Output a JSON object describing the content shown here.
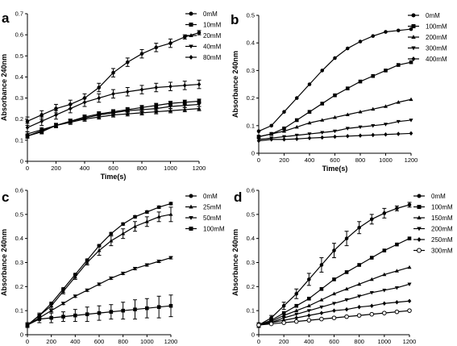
{
  "chart_data": [
    {
      "panel": "a",
      "type": "line",
      "xlabel": "Time(s)",
      "ylabel": "Absorbance 240nm",
      "xlim": [
        0,
        1200
      ],
      "ylim": [
        0,
        0.7
      ],
      "xticks": [
        0,
        200,
        400,
        600,
        800,
        1000,
        1200
      ],
      "yticks": [
        0.0,
        0.1,
        0.2,
        0.3,
        0.4,
        0.5,
        0.6,
        0.7
      ],
      "x": [
        0,
        100,
        200,
        300,
        400,
        500,
        600,
        700,
        800,
        900,
        1000,
        1100,
        1200
      ],
      "legend_position": "top-right",
      "series": [
        {
          "name": "0mM",
          "marker": "circle",
          "values": [
            0.19,
            0.22,
            0.25,
            0.27,
            0.3,
            0.35,
            0.42,
            0.47,
            0.51,
            0.54,
            0.56,
            0.59,
            0.61
          ],
          "errors": [
            0.02,
            0.02,
            0.02,
            0.02,
            0.02,
            0.02,
            0.02,
            0.02,
            0.02,
            0.02,
            0.02,
            0.01,
            0.01
          ]
        },
        {
          "name": "10mM",
          "marker": "square",
          "values": [
            0.12,
            0.14,
            0.17,
            0.19,
            0.21,
            0.225,
            0.235,
            0.245,
            0.255,
            0.265,
            0.275,
            0.28,
            0.285
          ],
          "errors": [
            0.01,
            0.01,
            0.01,
            0.01,
            0.01,
            0.01,
            0.01,
            0.01,
            0.01,
            0.01,
            0.01,
            0.01,
            0.01
          ]
        },
        {
          "name": "20mM",
          "marker": "triangle-up",
          "values": [
            0.13,
            0.15,
            0.17,
            0.185,
            0.2,
            0.21,
            0.22,
            0.225,
            0.23,
            0.235,
            0.24,
            0.245,
            0.25
          ],
          "errors": [
            0.01,
            0.01,
            0.01,
            0.01,
            0.01,
            0.01,
            0.01,
            0.01,
            0.01,
            0.01,
            0.01,
            0.01,
            0.01
          ]
        },
        {
          "name": "40mM",
          "marker": "triangle-down",
          "values": [
            0.12,
            0.145,
            0.17,
            0.19,
            0.205,
            0.22,
            0.23,
            0.24,
            0.245,
            0.25,
            0.26,
            0.265,
            0.27
          ],
          "errors": [
            0.01,
            0.01,
            0.01,
            0.01,
            0.01,
            0.01,
            0.01,
            0.01,
            0.01,
            0.01,
            0.01,
            0.01,
            0.01
          ]
        },
        {
          "name": "80mM",
          "marker": "diamond",
          "values": [
            0.16,
            0.19,
            0.22,
            0.25,
            0.28,
            0.3,
            0.32,
            0.33,
            0.34,
            0.35,
            0.355,
            0.36,
            0.365
          ],
          "errors": [
            0.02,
            0.02,
            0.02,
            0.02,
            0.02,
            0.02,
            0.02,
            0.02,
            0.02,
            0.02,
            0.02,
            0.02,
            0.02
          ]
        }
      ]
    },
    {
      "panel": "b",
      "type": "line",
      "xlabel": "Time(s)",
      "ylabel": "Absorbance 240nm",
      "xlim": [
        0,
        1200
      ],
      "ylim": [
        0,
        0.5
      ],
      "xticks": [
        0,
        200,
        400,
        600,
        800,
        1000,
        1200
      ],
      "yticks": [
        0.0,
        0.1,
        0.2,
        0.3,
        0.4,
        0.5
      ],
      "x": [
        0,
        100,
        200,
        300,
        400,
        500,
        600,
        700,
        800,
        900,
        1000,
        1100,
        1200
      ],
      "legend_position": "top-right",
      "series": [
        {
          "name": "0mM",
          "marker": "circle",
          "values": [
            0.08,
            0.1,
            0.15,
            0.2,
            0.25,
            0.3,
            0.345,
            0.38,
            0.405,
            0.425,
            0.44,
            0.445,
            0.45
          ]
        },
        {
          "name": "100mM",
          "marker": "square",
          "values": [
            0.06,
            0.07,
            0.09,
            0.12,
            0.15,
            0.18,
            0.21,
            0.235,
            0.26,
            0.28,
            0.3,
            0.32,
            0.33
          ]
        },
        {
          "name": "200mM",
          "marker": "triangle-up",
          "values": [
            0.06,
            0.07,
            0.08,
            0.095,
            0.11,
            0.12,
            0.13,
            0.14,
            0.15,
            0.16,
            0.17,
            0.185,
            0.195
          ]
        },
        {
          "name": "300mM",
          "marker": "triangle-down",
          "values": [
            0.05,
            0.055,
            0.06,
            0.065,
            0.07,
            0.075,
            0.08,
            0.09,
            0.095,
            0.1,
            0.105,
            0.115,
            0.12
          ]
        },
        {
          "name": "400mM",
          "marker": "diamond",
          "values": [
            0.045,
            0.05,
            0.05,
            0.052,
            0.055,
            0.057,
            0.06,
            0.062,
            0.064,
            0.066,
            0.068,
            0.07,
            0.072
          ]
        }
      ]
    },
    {
      "panel": "c",
      "type": "line",
      "xlabel": "Time(s)",
      "ylabel": "Absorbance 240nm",
      "xlim": [
        0,
        1200
      ],
      "ylim": [
        0,
        0.6
      ],
      "xticks": [
        0,
        200,
        400,
        600,
        800,
        1000,
        1200
      ],
      "yticks": [
        0.0,
        0.1,
        0.2,
        0.3,
        0.4,
        0.5,
        0.6
      ],
      "x": [
        0,
        100,
        200,
        300,
        400,
        500,
        600,
        700,
        800,
        900,
        1000,
        1100,
        1200
      ],
      "legend_position": "top-right",
      "series": [
        {
          "name": "0mM",
          "marker": "circle",
          "values": [
            0.04,
            0.08,
            0.13,
            0.19,
            0.25,
            0.31,
            0.37,
            0.42,
            0.46,
            0.49,
            0.51,
            0.53,
            0.545
          ],
          "errors": [
            0.005,
            0.005,
            0.005,
            0.005,
            0.005,
            0.005,
            0.005,
            0.005,
            0.005,
            0.005,
            0.005,
            0.005,
            0.005
          ]
        },
        {
          "name": "25mM",
          "marker": "triangle-up",
          "values": [
            0.04,
            0.08,
            0.12,
            0.18,
            0.24,
            0.3,
            0.35,
            0.39,
            0.42,
            0.45,
            0.47,
            0.49,
            0.5
          ],
          "errors": [
            0.01,
            0.01,
            0.01,
            0.01,
            0.01,
            0.01,
            0.02,
            0.02,
            0.02,
            0.02,
            0.02,
            0.02,
            0.03
          ]
        },
        {
          "name": "50mM",
          "marker": "triangle-down",
          "values": [
            0.04,
            0.07,
            0.1,
            0.13,
            0.16,
            0.185,
            0.21,
            0.235,
            0.255,
            0.275,
            0.29,
            0.305,
            0.32
          ],
          "errors": [
            0.005,
            0.005,
            0.005,
            0.005,
            0.005,
            0.005,
            0.005,
            0.005,
            0.005,
            0.005,
            0.005,
            0.005,
            0.005
          ]
        },
        {
          "name": "100mM",
          "marker": "square",
          "values": [
            0.04,
            0.065,
            0.07,
            0.075,
            0.08,
            0.085,
            0.09,
            0.095,
            0.1,
            0.105,
            0.11,
            0.115,
            0.12
          ],
          "errors": [
            0.01,
            0.015,
            0.02,
            0.02,
            0.025,
            0.03,
            0.03,
            0.03,
            0.035,
            0.04,
            0.04,
            0.045,
            0.045
          ]
        }
      ]
    },
    {
      "panel": "d",
      "type": "line",
      "xlabel": "Time(s)",
      "ylabel": "Absorbance 240nm",
      "xlim": [
        0,
        1200
      ],
      "ylim": [
        0,
        0.6
      ],
      "xticks": [
        0,
        200,
        400,
        600,
        800,
        1000,
        1200
      ],
      "yticks": [
        0.0,
        0.1,
        0.2,
        0.3,
        0.4,
        0.5,
        0.6
      ],
      "x": [
        0,
        100,
        200,
        300,
        400,
        500,
        600,
        700,
        800,
        900,
        1000,
        1100,
        1200
      ],
      "legend_position": "top-right",
      "series": [
        {
          "name": "0mM",
          "marker": "circle",
          "values": [
            0.04,
            0.07,
            0.12,
            0.17,
            0.23,
            0.29,
            0.35,
            0.4,
            0.445,
            0.48,
            0.505,
            0.525,
            0.54
          ],
          "errors": [
            0.01,
            0.01,
            0.015,
            0.02,
            0.025,
            0.03,
            0.03,
            0.03,
            0.025,
            0.02,
            0.02,
            0.01,
            0.01
          ]
        },
        {
          "name": "100mM",
          "marker": "square",
          "values": [
            0.04,
            0.06,
            0.09,
            0.12,
            0.15,
            0.19,
            0.23,
            0.26,
            0.29,
            0.32,
            0.35,
            0.375,
            0.4
          ]
        },
        {
          "name": "150mM",
          "marker": "triangle-up",
          "values": [
            0.04,
            0.055,
            0.08,
            0.1,
            0.12,
            0.145,
            0.17,
            0.19,
            0.21,
            0.23,
            0.25,
            0.265,
            0.28
          ]
        },
        {
          "name": "200mM",
          "marker": "triangle-down",
          "values": [
            0.04,
            0.05,
            0.07,
            0.085,
            0.1,
            0.115,
            0.13,
            0.145,
            0.16,
            0.175,
            0.185,
            0.195,
            0.21
          ]
        },
        {
          "name": "250mM",
          "marker": "diamond",
          "values": [
            0.04,
            0.05,
            0.06,
            0.07,
            0.08,
            0.09,
            0.1,
            0.105,
            0.115,
            0.12,
            0.13,
            0.135,
            0.14
          ]
        },
        {
          "name": "300mM",
          "marker": "circle-open",
          "values": [
            0.04,
            0.045,
            0.05,
            0.055,
            0.06,
            0.065,
            0.07,
            0.075,
            0.08,
            0.085,
            0.09,
            0.095,
            0.1
          ]
        }
      ]
    }
  ]
}
